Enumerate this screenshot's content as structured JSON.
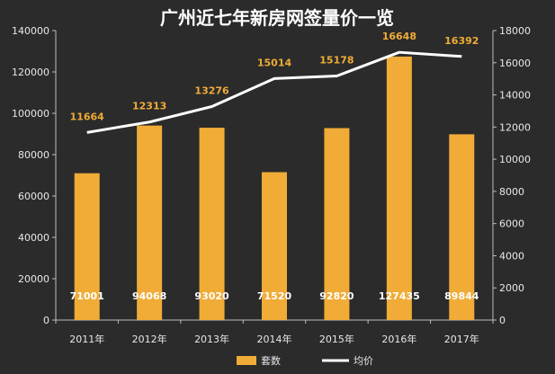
{
  "chart_data": {
    "type": "bar",
    "title": "广州近七年新房网签量价一览",
    "categories": [
      "2011年",
      "2012年",
      "2013年",
      "2014年",
      "2015年",
      "2016年",
      "2017年"
    ],
    "series": [
      {
        "name": "套数",
        "type": "bar",
        "axis": "left",
        "color": "#f0ac37",
        "values": [
          71001,
          94068,
          93020,
          71520,
          92820,
          127435,
          89844
        ]
      },
      {
        "name": "均价",
        "type": "line",
        "axis": "right",
        "color": "#ffffff",
        "label_color": "#f0ac37",
        "values": [
          11664,
          12313,
          13276,
          15014,
          15178,
          16648,
          16392
        ]
      }
    ],
    "ylim_left": [
      0,
      140000
    ],
    "ylim_right": [
      0,
      18000
    ],
    "yticks_left": [
      0,
      20000,
      40000,
      60000,
      80000,
      100000,
      120000,
      140000
    ],
    "yticks_right": [
      0,
      2000,
      4000,
      6000,
      8000,
      10000,
      12000,
      14000,
      16000,
      18000
    ],
    "grid": false,
    "legend_position": "bottom"
  }
}
